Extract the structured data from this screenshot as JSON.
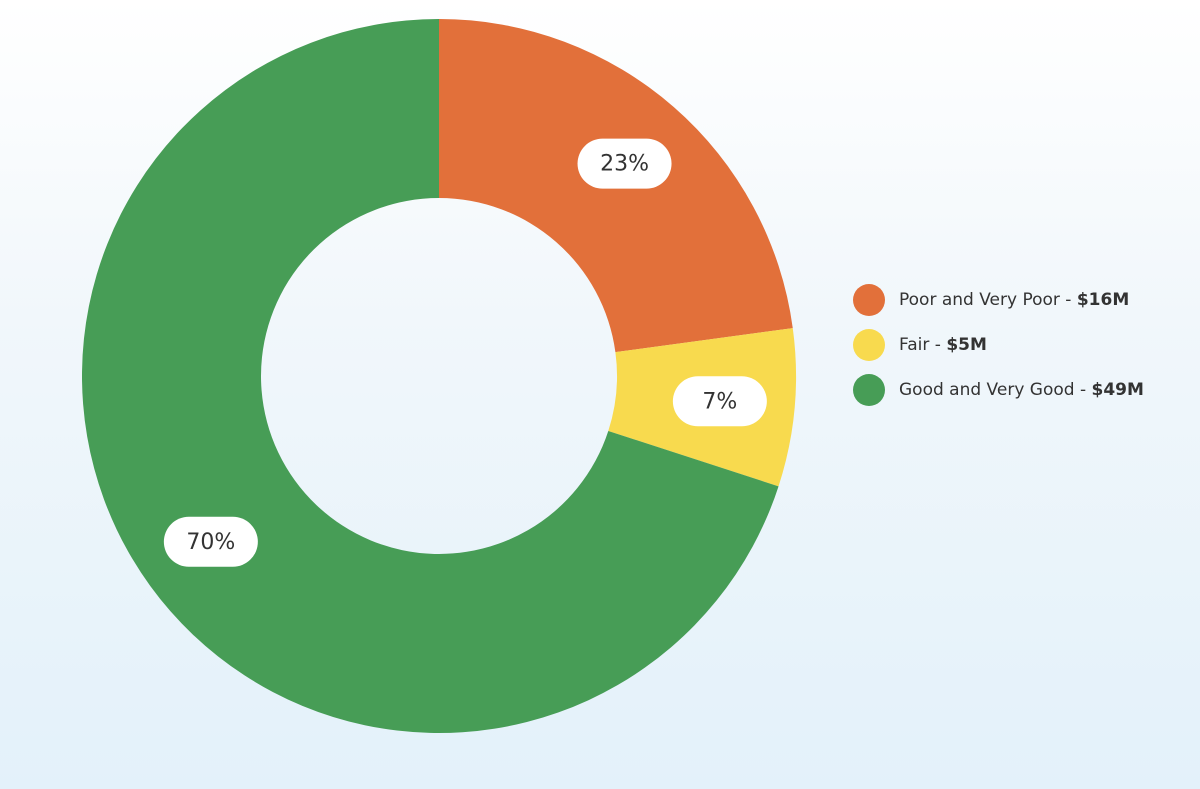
{
  "chart_data": {
    "type": "pie",
    "title": "",
    "donut": true,
    "start_angle_deg": 0,
    "direction": "clockwise",
    "legend_position": "right",
    "slices": [
      {
        "label": "Poor and Very Poor",
        "value_label": "$16M",
        "value": 16,
        "percent": 23,
        "percent_label": "23%",
        "color": "#e2703a"
      },
      {
        "label": "Fair",
        "value_label": "$5M",
        "value": 5,
        "percent": 7,
        "percent_label": "7%",
        "color": "#f8da4e"
      },
      {
        "label": "Good and Very Good",
        "value_label": "$49M",
        "value": 49,
        "percent": 70,
        "percent_label": "70%",
        "color": "#479d56"
      }
    ]
  },
  "legend": {
    "separator": " - ",
    "items": [
      {
        "label": "Poor and Very Poor",
        "value": "$16M",
        "color": "#e2703a"
      },
      {
        "label": "Fair",
        "value": "$5M",
        "color": "#f8da4e"
      },
      {
        "label": "Good and Very Good",
        "value": "$49M",
        "color": "#479d56"
      }
    ]
  }
}
